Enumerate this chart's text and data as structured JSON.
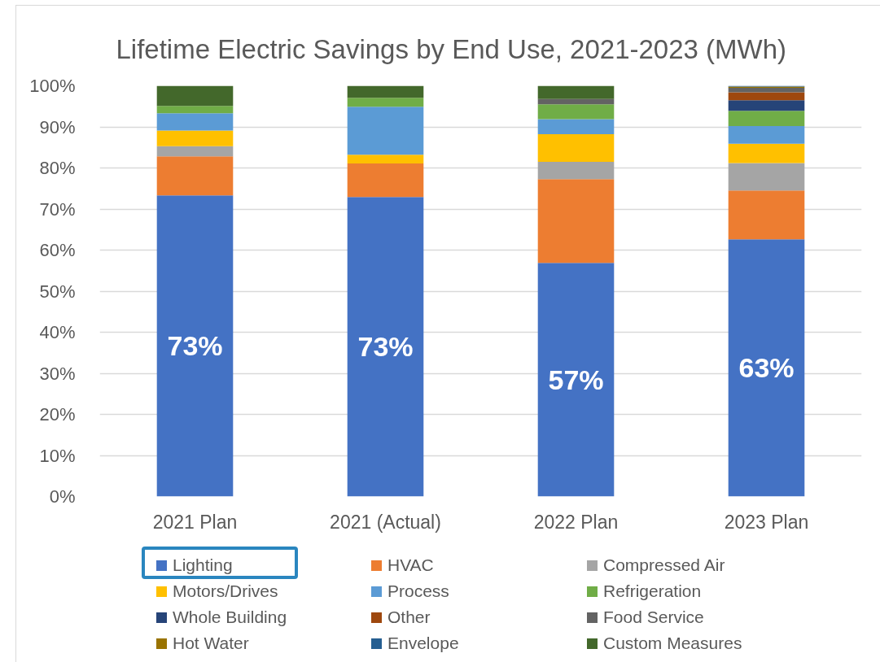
{
  "chart_data": {
    "type": "bar",
    "title": "Lifetime Electric Savings by End Use, 2021-2023 (MWh)",
    "stacked": true,
    "categories": [
      "2021 Plan",
      "2021 (Actual)",
      "2022 Plan",
      "2023 Plan"
    ],
    "series": [
      {
        "name": "Lighting",
        "color": "#4472c4",
        "values": [
          73.3,
          72.9,
          56.9,
          62.6
        ],
        "value_labels": [
          "73%",
          "73%",
          "57%",
          "63%"
        ]
      },
      {
        "name": "HVAC",
        "color": "#ed7d31",
        "values": [
          9.5,
          8.2,
          20.4,
          11.9
        ]
      },
      {
        "name": "Compressed Air",
        "color": "#a5a5a5",
        "values": [
          2.5,
          null,
          4.2,
          6.7
        ]
      },
      {
        "name": "Motors/Drives",
        "color": "#ffc000",
        "values": [
          3.8,
          2.1,
          6.7,
          4.7
        ]
      },
      {
        "name": "Process",
        "color": "#5b9bd5",
        "values": [
          4.2,
          11.7,
          3.7,
          4.3
        ]
      },
      {
        "name": "Refrigeration",
        "color": "#70ad47",
        "values": [
          1.8,
          2.2,
          3.6,
          3.7
        ]
      },
      {
        "name": "Whole Building",
        "color": "#264478",
        "values": [
          null,
          null,
          null,
          2.6
        ]
      },
      {
        "name": "Other",
        "color": "#9e480e",
        "values": [
          null,
          null,
          null,
          1.9
        ]
      },
      {
        "name": "Food Service",
        "color": "#636363",
        "values": [
          null,
          null,
          1.3,
          1.1
        ]
      },
      {
        "name": "Hot Water",
        "color": "#997300",
        "values": [
          null,
          null,
          null,
          0.3
        ]
      },
      {
        "name": "Envelope",
        "color": "#255e91",
        "values": [
          null,
          null,
          null,
          0.2
        ]
      },
      {
        "name": "Custom Measures",
        "color": "#43682b",
        "values": [
          4.9,
          2.9,
          3.2,
          null
        ]
      }
    ],
    "ylim": [
      0,
      100
    ],
    "yticks": [
      {
        "value": 0,
        "label": "0%"
      },
      {
        "value": 10,
        "label": "10%"
      },
      {
        "value": 20,
        "label": "20%"
      },
      {
        "value": 30,
        "label": "30%"
      },
      {
        "value": 40,
        "label": "40%"
      },
      {
        "value": 50,
        "label": "50%"
      },
      {
        "value": 60,
        "label": "60%"
      },
      {
        "value": 70,
        "label": "70%"
      },
      {
        "value": 80,
        "label": "80%"
      },
      {
        "value": 90,
        "label": "90%"
      },
      {
        "value": 100,
        "label": "100%"
      }
    ],
    "grid": "y",
    "legend": "bottom"
  }
}
